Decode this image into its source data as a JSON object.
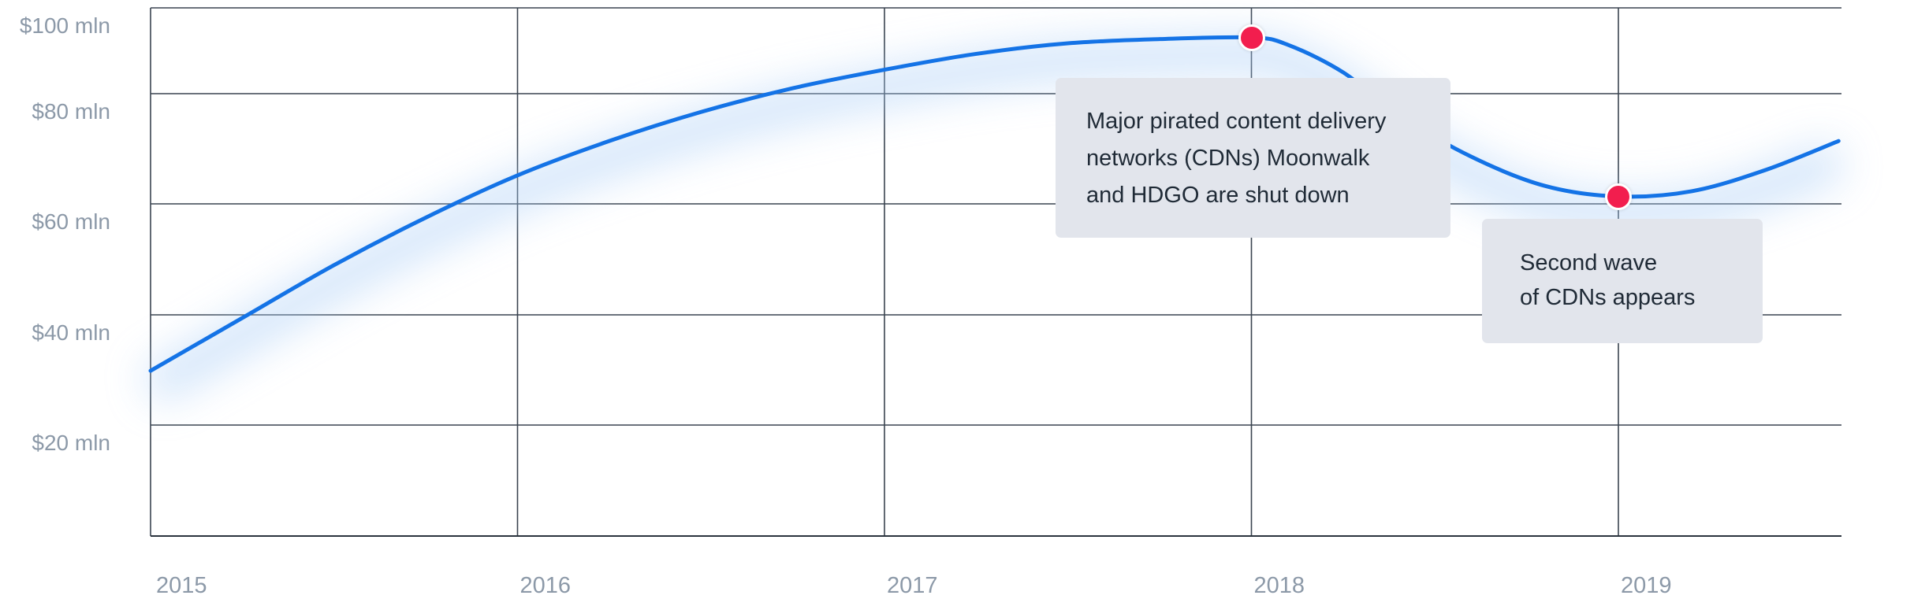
{
  "chart_data": {
    "type": "line",
    "title": "",
    "xlabel": "",
    "ylabel": "",
    "x_tick_labels": [
      "2015",
      "2016",
      "2017",
      "2018",
      "2019"
    ],
    "y_tick_labels": [
      "$100 mln",
      "$80 mln",
      "$60 mln",
      "$40 mln",
      "$20 mln"
    ],
    "ylim": [
      0,
      100
    ],
    "grid": true,
    "line_color": "#1473e6",
    "marker_color": "#f21e4e",
    "series": [
      {
        "x": [
          2015.0,
          2015.25,
          2015.5,
          2015.75,
          2016.0,
          2016.25,
          2016.5,
          2016.75,
          2017.0,
          2017.25,
          2017.5,
          2017.75,
          2018.0,
          2018.1,
          2018.25,
          2018.4,
          2018.6,
          2018.8,
          2019.0,
          2019.2,
          2019.4,
          2019.6
        ],
        "y": [
          29.5,
          39.5,
          49.5,
          58.5,
          66.5,
          73,
          78.5,
          83,
          86.5,
          89.5,
          91.5,
          92.3,
          92.6,
          91.2,
          86,
          78,
          70,
          64.5,
          62.5,
          63.5,
          67.5,
          73
        ]
      }
    ],
    "annotations": [
      {
        "x": 2018.0,
        "y": 92.6,
        "lines": [
          "Major pirated content delivery",
          "networks (CDNs) Moonwalk",
          "and HDGO are shut down"
        ]
      },
      {
        "x": 2019.0,
        "y": 62.5,
        "lines": [
          "Second wave",
          "of CDNs appears"
        ]
      }
    ]
  }
}
